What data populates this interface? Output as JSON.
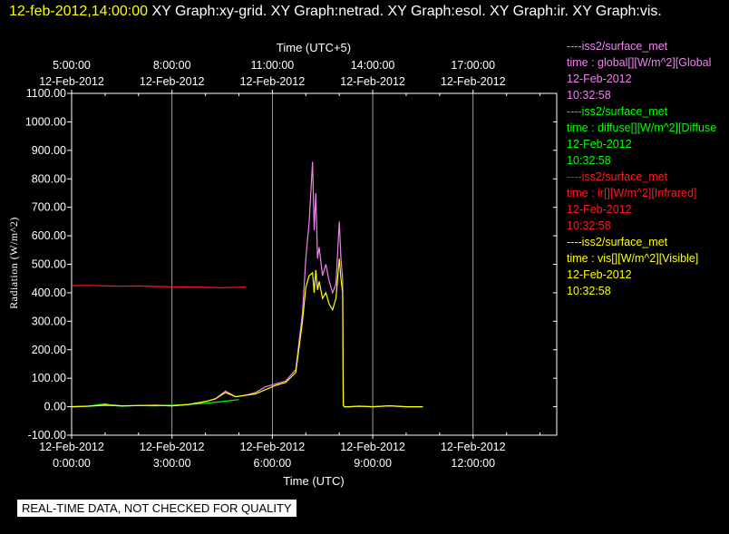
{
  "header": {
    "time_label": "12-feb-2012,14:00:00",
    "graphs_label": "XY Graph:xy-grid.  XY Graph:netrad.  XY Graph:esol.  XY Graph:ir.  XY Graph:vis."
  },
  "notice": "REAL-TIME DATA, NOT CHECKED FOR QUALITY",
  "legend": [
    {
      "line1": "----iss2/surface_met",
      "line2": "time : global[][W/m^2][Global",
      "line3": "12-Feb-2012",
      "line4": "10:32:58",
      "color": "#ee82ee"
    },
    {
      "line1": "----iss2/surface_met",
      "line2": "time : diffuse[][W/m^2][Diffuse",
      "line3": "12-Feb-2012",
      "line4": "10:32:58",
      "color": "#00ff00"
    },
    {
      "line1": "----iss2/surface_met",
      "line2": "time : ir[][W/m^2][Infrared]",
      "line3": "12-Feb-2012",
      "line4": "10:32:58",
      "color": "#ff1a1a"
    },
    {
      "line1": "----iss2/surface_met",
      "line2": "time : vis[][W/m^2][Visible]",
      "line3": "12-Feb-2012",
      "line4": "10:32:58",
      "color": "#ffff00"
    }
  ],
  "chart_data": {
    "type": "line",
    "title": "",
    "xlabel": "Time (UTC)",
    "x2label": "Time (UTC+5)",
    "ylabel": "Radiation (W/m^2)",
    "xlim": [
      0,
      14.5
    ],
    "ylim": [
      -100,
      1100
    ],
    "grid": true,
    "yticks": [
      "1100.00",
      "1000.00",
      "900.00",
      "800.00",
      "700.00",
      "600.00",
      "500.00",
      "400.00",
      "300.00",
      "200.00",
      "100.00",
      "0.00",
      "-100.00"
    ],
    "yvals": [
      1100,
      1000,
      900,
      800,
      700,
      600,
      500,
      400,
      300,
      200,
      100,
      0,
      -100
    ],
    "xticks": [
      {
        "x": 0,
        "date": "12-Feb-2012",
        "time": "0:00:00"
      },
      {
        "x": 3,
        "date": "12-Feb-2012",
        "time": "3:00:00"
      },
      {
        "x": 6,
        "date": "12-Feb-2012",
        "time": "6:00:00"
      },
      {
        "x": 9,
        "date": "12-Feb-2012",
        "time": "9:00:00"
      },
      {
        "x": 12,
        "date": "12-Feb-2012",
        "time": "12:00:00"
      }
    ],
    "x2ticks": [
      {
        "x": 0,
        "time": "5:00:00",
        "date": "12-Feb-2012"
      },
      {
        "x": 3,
        "time": "8:00:00",
        "date": "12-Feb-2012"
      },
      {
        "x": 6,
        "time": "11:00:00",
        "date": "12-Feb-2012"
      },
      {
        "x": 9,
        "time": "14:00:00",
        "date": "12-Feb-2012"
      },
      {
        "x": 12,
        "time": "17:00:00",
        "date": "12-Feb-2012"
      }
    ],
    "series": [
      {
        "name": "global",
        "color": "#ee82ee",
        "x": [
          0,
          0.5,
          1,
          1.5,
          2,
          2.5,
          3,
          3.5,
          4,
          4.3,
          4.6,
          4.9,
          5.2,
          5.5,
          5.8,
          6.1,
          6.4,
          6.7,
          6.9,
          7.0,
          7.1,
          7.2,
          7.25,
          7.3,
          7.35,
          7.4,
          7.5,
          7.6,
          7.7,
          7.8,
          7.9,
          8.0,
          8.05,
          8.1,
          8.12,
          8.15,
          8.3,
          8.6,
          9.0,
          9.5,
          10.0,
          10.5
        ],
        "y": [
          0,
          2,
          8,
          3,
          4,
          5,
          3,
          8,
          18,
          28,
          55,
          35,
          40,
          50,
          70,
          80,
          90,
          130,
          330,
          520,
          650,
          860,
          620,
          750,
          520,
          560,
          460,
          500,
          440,
          400,
          430,
          650,
          520,
          450,
          5,
          0,
          0,
          2,
          0,
          3,
          0,
          0
        ]
      },
      {
        "name": "diffuse",
        "color": "#00ff00",
        "x": [
          0,
          0.5,
          1,
          1.2,
          1.5,
          2,
          2.5,
          3,
          3.5,
          4,
          4.5,
          5
        ],
        "y": [
          0,
          2,
          10,
          5,
          2,
          4,
          3,
          5,
          8,
          12,
          18,
          25
        ]
      },
      {
        "name": "ir",
        "color": "#ff1a1a",
        "x": [
          0,
          0.5,
          1,
          1.5,
          2,
          2.5,
          3,
          3.5,
          4,
          4.5,
          5.2
        ],
        "y": [
          425,
          426,
          424,
          423,
          424,
          422,
          421,
          420,
          419,
          418,
          420
        ]
      },
      {
        "name": "vis",
        "color": "#ffff00",
        "x": [
          0,
          0.5,
          1,
          1.5,
          2,
          2.5,
          3,
          3.5,
          4,
          4.3,
          4.6,
          4.9,
          5.2,
          5.5,
          5.8,
          6.1,
          6.4,
          6.7,
          6.9,
          7.0,
          7.1,
          7.2,
          7.25,
          7.3,
          7.35,
          7.4,
          7.5,
          7.6,
          7.7,
          7.8,
          7.9,
          8.0,
          8.05,
          8.1,
          8.12,
          8.15,
          8.3,
          8.6,
          9.0,
          9.5,
          10.0,
          10.5
        ],
        "y": [
          0,
          2,
          5,
          3,
          4,
          5,
          3,
          8,
          18,
          28,
          50,
          35,
          40,
          45,
          60,
          75,
          85,
          120,
          300,
          420,
          460,
          470,
          400,
          480,
          410,
          440,
          380,
          400,
          360,
          340,
          380,
          520,
          450,
          400,
          5,
          0,
          0,
          2,
          0,
          3,
          0,
          0
        ]
      }
    ]
  }
}
